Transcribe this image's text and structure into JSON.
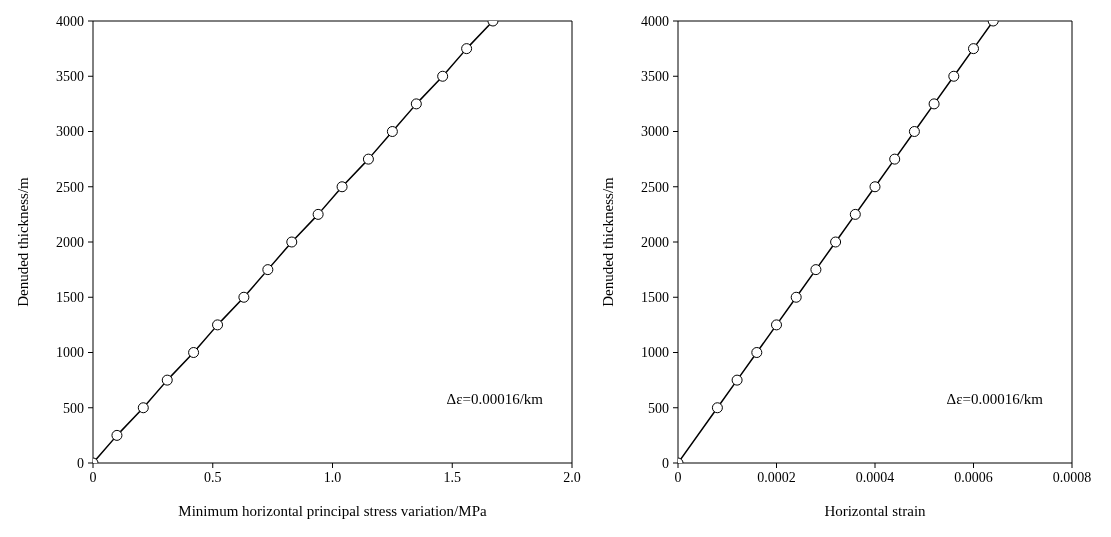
{
  "chart_data": [
    {
      "type": "line",
      "xlabel": "Minimum horizontal principal stress variation/MPa",
      "ylabel": "Denuded thickness/m",
      "marker": "circle",
      "line_style": "solid",
      "grid": false,
      "legend": false,
      "xlim": [
        0,
        2
      ],
      "xticks": [
        0,
        0.5,
        {
          "value": 1,
          "label": "1.0"
        },
        1.5,
        {
          "value": 2,
          "label": "2.0"
        }
      ],
      "ylim": [
        0,
        4000
      ],
      "yticks": [
        0,
        500,
        1000,
        1500,
        2000,
        2500,
        3000,
        3500,
        4000
      ],
      "annotations": [
        "Δε=0.00016/km"
      ],
      "series": [
        {
          "color": "#000000",
          "x": [
            0,
            0.1,
            0.21,
            0.31,
            0.42,
            0.52,
            0.63,
            0.73,
            0.83,
            0.94,
            1.04,
            1.15,
            1.25,
            1.35,
            1.46,
            1.56,
            1.67
          ],
          "values": [
            0,
            250,
            500,
            750,
            1000,
            1250,
            1500,
            1750,
            2000,
            2250,
            2500,
            2750,
            3000,
            3250,
            3500,
            3750,
            4000
          ]
        }
      ]
    },
    {
      "type": "line",
      "xlabel": "Horizontal strain",
      "ylabel": "Denuded thickness/m",
      "marker": "circle",
      "line_style": "solid",
      "grid": false,
      "legend": false,
      "xlim": [
        0,
        0.0008
      ],
      "xticks": [
        0,
        0.0002,
        0.0004,
        0.0006,
        0.0008
      ],
      "ylim": [
        0,
        4000
      ],
      "yticks": [
        0,
        500,
        1000,
        1500,
        2000,
        2500,
        3000,
        3500,
        4000
      ],
      "annotations": [
        "Δε=0.00016/km"
      ],
      "series": [
        {
          "color": "#000000",
          "x": [
            0,
            8e-05,
            0.00012,
            0.00016,
            0.0002,
            0.00024,
            0.00028,
            0.00032,
            0.00036,
            0.0004,
            0.00044,
            0.00048,
            0.00052,
            0.00056,
            0.0006,
            0.00064
          ],
          "values": [
            0,
            500,
            750,
            1000,
            1250,
            1500,
            1750,
            2000,
            2250,
            2500,
            2750,
            3000,
            3250,
            3500,
            3750,
            4000
          ]
        }
      ]
    }
  ]
}
